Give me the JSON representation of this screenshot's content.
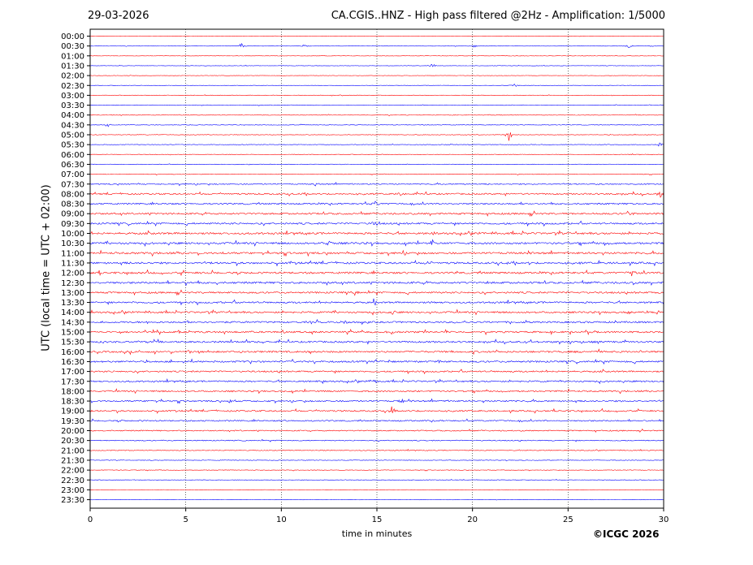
{
  "header": {
    "date": "29-03-2026",
    "title": "CA.CGIS..HNZ - High pass filtered @2Hz - Amplification: 1/5000"
  },
  "footer": {
    "copyright": "©ICGC 2026"
  },
  "colors": {
    "red": "#ff0000",
    "blue": "#0000ff",
    "grid": "#000000"
  },
  "chart_data": {
    "type": "line",
    "xlabel": "time in minutes",
    "ylabel": "UTC (local time = UTC + 02:00)",
    "xlim": [
      0,
      30
    ],
    "xticks": [
      0,
      5,
      10,
      15,
      20,
      25,
      30
    ],
    "grid": "vertical dotted at x ticks",
    "rows": [
      "00:00",
      "00:30",
      "01:00",
      "01:30",
      "02:00",
      "02:30",
      "03:00",
      "03:30",
      "04:00",
      "04:30",
      "05:00",
      "05:30",
      "06:00",
      "06:30",
      "07:00",
      "07:30",
      "08:00",
      "08:30",
      "09:00",
      "09:30",
      "10:00",
      "10:30",
      "11:00",
      "11:30",
      "12:00",
      "12:30",
      "13:00",
      "13:30",
      "14:00",
      "14:30",
      "15:00",
      "15:30",
      "16:00",
      "16:30",
      "17:00",
      "17:30",
      "18:00",
      "18:30",
      "19:00",
      "19:30",
      "20:00",
      "20:30",
      "21:00",
      "21:30",
      "22:00",
      "22:30",
      "23:00",
      "23:30"
    ],
    "row_colors": "alternating red (even) and blue (odd)",
    "noise_level": [
      0.2,
      0.2,
      0.2,
      0.2,
      0.2,
      0.2,
      0.3,
      0.3,
      0.3,
      0.3,
      0.3,
      0.3,
      0.3,
      0.3,
      0.3,
      0.6,
      0.8,
      0.8,
      0.9,
      0.9,
      1.0,
      1.0,
      1.0,
      1.0,
      1.0,
      1.0,
      0.9,
      0.9,
      0.9,
      0.9,
      0.9,
      0.9,
      0.9,
      0.9,
      0.8,
      0.8,
      0.8,
      0.8,
      0.8,
      0.7,
      0.6,
      0.5,
      0.4,
      0.3,
      0.3,
      0.3,
      0.2,
      0.2
    ],
    "events": [
      {
        "row": "00:30",
        "minute": 7.9,
        "amplitude": 4
      },
      {
        "row": "00:30",
        "minute": 11.2,
        "amplitude": 2
      },
      {
        "row": "00:30",
        "minute": 20.1,
        "amplitude": 2
      },
      {
        "row": "00:30",
        "minute": 28.2,
        "amplitude": 3
      },
      {
        "row": "01:30",
        "minute": 17.9,
        "amplitude": 3
      },
      {
        "row": "02:30",
        "minute": 22.2,
        "amplitude": 3
      },
      {
        "row": "04:30",
        "minute": 0.9,
        "amplitude": 3
      },
      {
        "row": "05:00",
        "minute": 21.9,
        "amplitude": 8
      },
      {
        "row": "05:30",
        "minute": 29.8,
        "amplitude": 3
      },
      {
        "row": "07:30",
        "minute": 11.8,
        "amplitude": 5
      },
      {
        "row": "08:00",
        "minute": 16.2,
        "amplitude": 4
      },
      {
        "row": "08:00",
        "minute": 29.8,
        "amplitude": 4
      },
      {
        "row": "08:30",
        "minute": 14.9,
        "amplitude": 4
      },
      {
        "row": "09:00",
        "minute": 28.3,
        "amplitude": 3
      },
      {
        "row": "09:30",
        "minute": 14.9,
        "amplitude": 4
      },
      {
        "row": "10:00",
        "minute": 17.9,
        "amplitude": 3
      },
      {
        "row": "10:30",
        "minute": 12.5,
        "amplitude": 5
      },
      {
        "row": "10:30",
        "minute": 17.9,
        "amplitude": 4
      },
      {
        "row": "11:30",
        "minute": 17.8,
        "amplitude": 5
      },
      {
        "row": "12:00",
        "minute": 28.3,
        "amplitude": 5
      },
      {
        "row": "13:00",
        "minute": 14.0,
        "amplitude": 3
      },
      {
        "row": "13:30",
        "minute": 14.9,
        "amplitude": 4
      },
      {
        "row": "14:00",
        "minute": 15.8,
        "amplitude": 4
      },
      {
        "row": "14:00",
        "minute": 28.2,
        "amplitude": 3
      },
      {
        "row": "14:30",
        "minute": 13.3,
        "amplitude": 4
      },
      {
        "row": "15:00",
        "minute": 15.8,
        "amplitude": 3
      },
      {
        "row": "16:30",
        "minute": 18.3,
        "amplitude": 4
      },
      {
        "row": "17:30",
        "minute": 14.8,
        "amplitude": 4
      },
      {
        "row": "18:30",
        "minute": 16.3,
        "amplitude": 4
      },
      {
        "row": "18:30",
        "minute": 7.3,
        "amplitude": 3
      },
      {
        "row": "19:00",
        "minute": 15.8,
        "amplitude": 4
      }
    ]
  }
}
